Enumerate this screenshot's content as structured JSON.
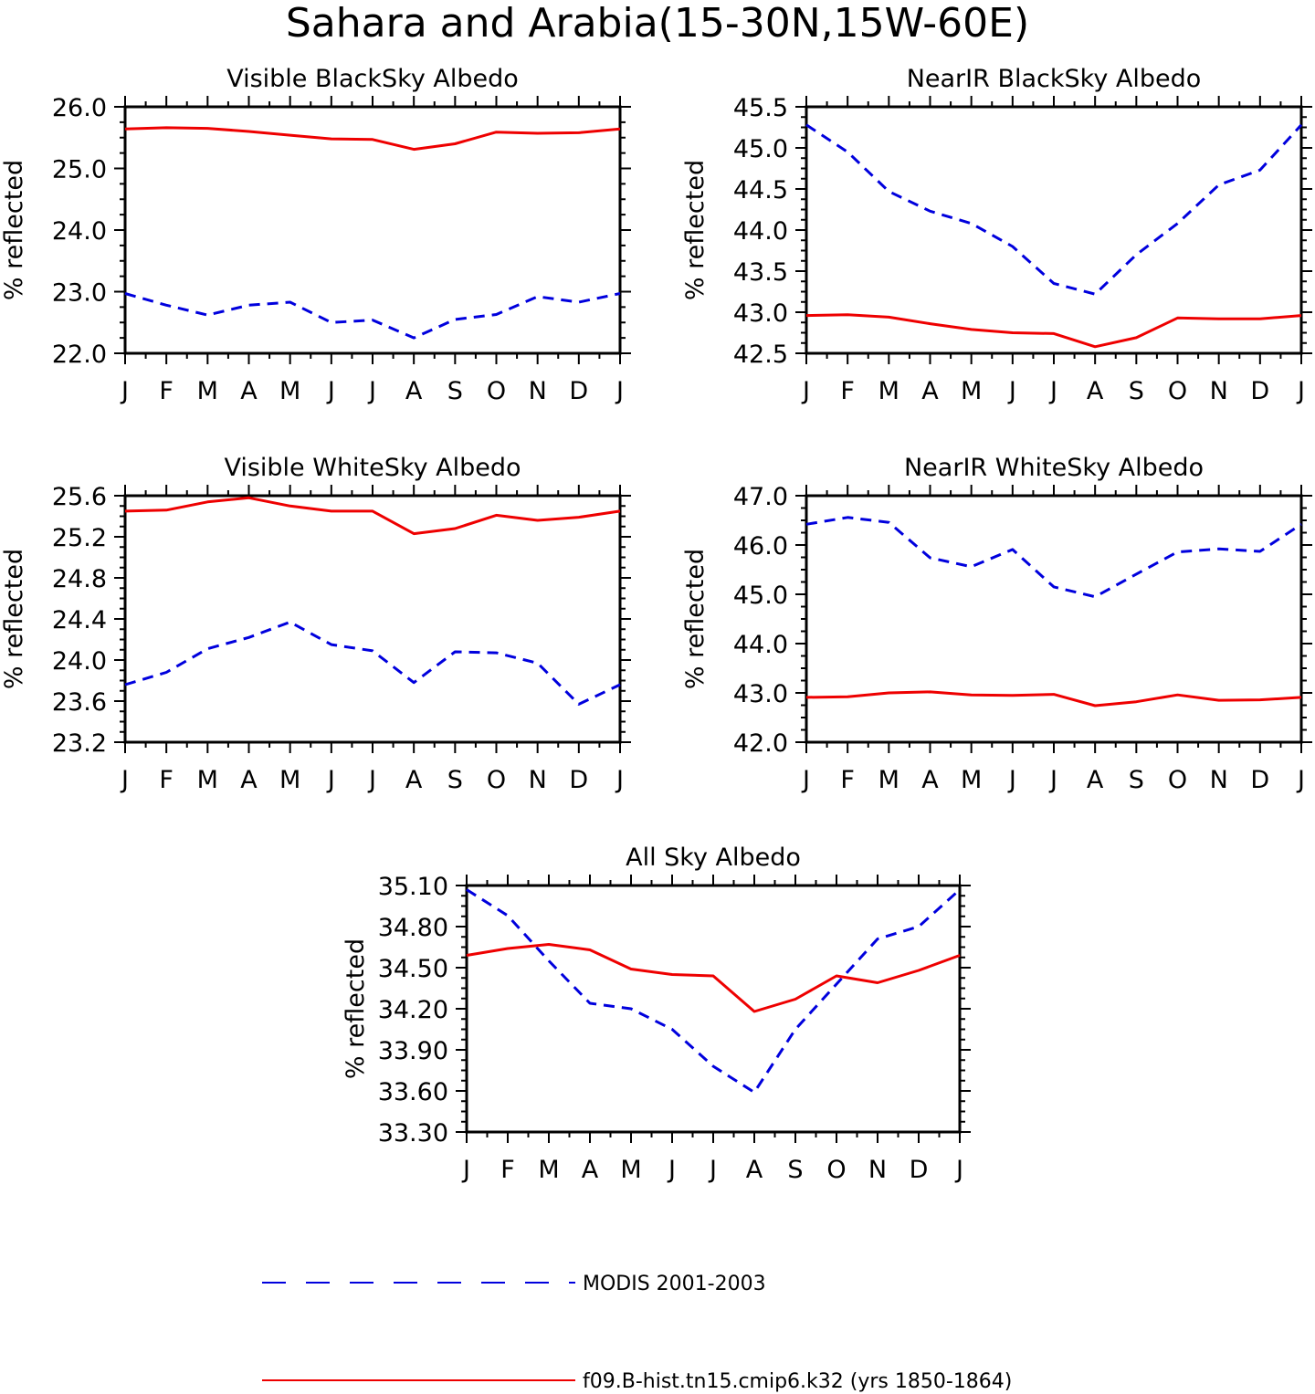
{
  "figure": {
    "title": "Sahara and Arabia(15-30N,15W-60E)"
  },
  "colors": {
    "modis": "#0000dd",
    "model": "#ee0000"
  },
  "legend": {
    "modis_label": "MODIS 2001-2003",
    "model_label": "f09.B-hist.tn15.cmip6.k32 (yrs 1850-1864)"
  },
  "chart_data": [
    {
      "type": "line",
      "title": "Visible BlackSky Albedo",
      "ylabel": "% reflected",
      "categories": [
        "J",
        "F",
        "M",
        "A",
        "M",
        "J",
        "J",
        "A",
        "S",
        "O",
        "N",
        "D",
        "J"
      ],
      "ylim": [
        22.0,
        26.0
      ],
      "yticks": [
        "26.0",
        "25.0",
        "24.0",
        "23.0",
        "22.0"
      ],
      "series": [
        {
          "key": "modis",
          "values": [
            22.97,
            22.78,
            22.62,
            22.78,
            22.83,
            22.5,
            22.54,
            22.25,
            22.55,
            22.63,
            22.92,
            22.83,
            22.97
          ]
        },
        {
          "key": "model",
          "values": [
            25.64,
            25.66,
            25.65,
            25.6,
            25.54,
            25.48,
            25.47,
            25.31,
            25.4,
            25.59,
            25.57,
            25.58,
            25.64
          ]
        }
      ]
    },
    {
      "type": "line",
      "title": "NearIR BlackSky Albedo",
      "ylabel": "% reflected",
      "categories": [
        "J",
        "F",
        "M",
        "A",
        "M",
        "J",
        "J",
        "A",
        "S",
        "O",
        "N",
        "D",
        "J"
      ],
      "ylim": [
        42.5,
        45.5
      ],
      "yticks": [
        "45.5",
        "45.0",
        "44.5",
        "44.0",
        "43.5",
        "43.0",
        "42.5"
      ],
      "series": [
        {
          "key": "modis",
          "values": [
            45.28,
            44.95,
            44.47,
            44.23,
            44.08,
            43.8,
            43.35,
            43.22,
            43.7,
            44.08,
            44.55,
            44.73,
            45.28
          ]
        },
        {
          "key": "model",
          "values": [
            42.96,
            42.97,
            42.94,
            42.86,
            42.79,
            42.75,
            42.74,
            42.58,
            42.69,
            42.93,
            42.92,
            42.92,
            42.96
          ]
        }
      ]
    },
    {
      "type": "line",
      "title": "Visible WhiteSky Albedo",
      "ylabel": "% reflected",
      "categories": [
        "J",
        "F",
        "M",
        "A",
        "M",
        "J",
        "J",
        "A",
        "S",
        "O",
        "N",
        "D",
        "J"
      ],
      "ylim": [
        23.2,
        25.6
      ],
      "yticks": [
        "25.6",
        "25.2",
        "24.8",
        "24.4",
        "24.0",
        "23.6",
        "23.2"
      ],
      "series": [
        {
          "key": "modis",
          "values": [
            23.76,
            23.88,
            24.11,
            24.22,
            24.37,
            24.15,
            24.09,
            23.78,
            24.08,
            24.07,
            23.97,
            23.57,
            23.76
          ]
        },
        {
          "key": "model",
          "values": [
            25.45,
            25.46,
            25.54,
            25.58,
            25.5,
            25.45,
            25.45,
            25.23,
            25.28,
            25.41,
            25.36,
            25.39,
            25.45
          ]
        }
      ]
    },
    {
      "type": "line",
      "title": "NearIR WhiteSky Albedo",
      "ylabel": "% reflected",
      "categories": [
        "J",
        "F",
        "M",
        "A",
        "M",
        "J",
        "J",
        "A",
        "S",
        "O",
        "N",
        "D",
        "J"
      ],
      "ylim": [
        42.0,
        47.0
      ],
      "yticks": [
        "47.0",
        "46.0",
        "45.0",
        "44.0",
        "43.0",
        "42.0"
      ],
      "series": [
        {
          "key": "modis",
          "values": [
            46.42,
            46.56,
            46.46,
            45.74,
            45.56,
            45.91,
            45.15,
            44.95,
            45.41,
            45.86,
            45.92,
            45.87,
            46.42
          ]
        },
        {
          "key": "model",
          "values": [
            42.91,
            42.92,
            43.0,
            43.02,
            42.96,
            42.95,
            42.97,
            42.74,
            42.82,
            42.96,
            42.85,
            42.86,
            42.91
          ]
        }
      ]
    },
    {
      "type": "line",
      "title": "All Sky Albedo",
      "ylabel": "% reflected",
      "categories": [
        "J",
        "F",
        "M",
        "A",
        "M",
        "J",
        "J",
        "A",
        "S",
        "O",
        "N",
        "D",
        "J"
      ],
      "ylim": [
        33.3,
        35.1
      ],
      "yticks": [
        "35.10",
        "34.80",
        "34.50",
        "34.20",
        "33.90",
        "33.60",
        "33.30"
      ],
      "series": [
        {
          "key": "modis",
          "values": [
            35.07,
            34.88,
            34.55,
            34.24,
            34.2,
            34.05,
            33.78,
            33.59,
            34.05,
            34.38,
            34.71,
            34.8,
            35.07
          ]
        },
        {
          "key": "model",
          "values": [
            34.59,
            34.64,
            34.67,
            34.63,
            34.49,
            34.45,
            34.44,
            34.18,
            34.27,
            34.44,
            34.39,
            34.48,
            34.59
          ]
        }
      ]
    }
  ]
}
